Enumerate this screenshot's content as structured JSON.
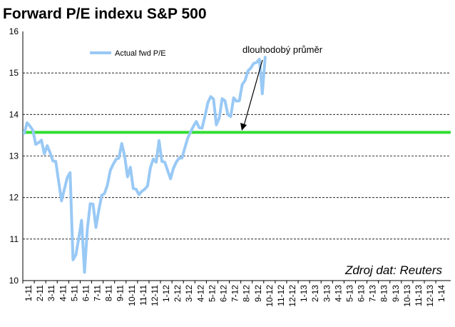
{
  "chart_data": {
    "type": "line",
    "title": "Forward P/E indexu S&P 500",
    "ylim": [
      10,
      16
    ],
    "yticks": [
      "10",
      "11",
      "12",
      "13",
      "14",
      "15",
      "16"
    ],
    "grid": "horizontal-dashed",
    "legend_position": "top-left",
    "x_tick_labels": [
      "1-11",
      "2-11",
      "3-11",
      "4-11",
      "5-11",
      "6-11",
      "7-11",
      "8-11",
      "9-11",
      "10-11",
      "11-11",
      "12-11",
      "1-12",
      "2-12",
      "3-12",
      "4-12",
      "5-12",
      "6-12",
      "7-12",
      "8-12",
      "9-12",
      "10-12",
      "11-12",
      "12-12",
      "1-13",
      "2-13",
      "3-13",
      "4-13",
      "5-13",
      "6-13",
      "7-13",
      "8-13",
      "9-13",
      "10-13",
      "11-13",
      "12-13",
      "1-14"
    ],
    "reference_line": {
      "value": 13.57,
      "label": "dlouhodobý  průměr",
      "color": "#33dd33"
    },
    "series": [
      {
        "name": "Actual fwd P/E",
        "color": "#99c9f5",
        "points_per_month": 4,
        "values": [
          13.55,
          13.8,
          13.72,
          13.62,
          13.28,
          13.32,
          13.38,
          13.05,
          13.25,
          13.08,
          12.88,
          12.87,
          12.38,
          11.92,
          12.2,
          12.48,
          12.6,
          10.5,
          10.62,
          11.02,
          11.45,
          10.2,
          11.25,
          11.85,
          11.84,
          11.28,
          11.7,
          12.05,
          12.1,
          12.3,
          12.65,
          12.8,
          12.92,
          12.95,
          13.3,
          13.0,
          12.5,
          12.73,
          12.22,
          12.2,
          12.07,
          12.15,
          12.2,
          12.28,
          12.72,
          12.93,
          12.85,
          13.37,
          12.87,
          12.85,
          12.65,
          12.45,
          12.7,
          12.85,
          12.95,
          12.95,
          13.2,
          13.43,
          13.58,
          13.72,
          13.83,
          13.68,
          13.67,
          13.96,
          14.28,
          14.43,
          14.37,
          13.75,
          13.92,
          14.38,
          14.33,
          14.0,
          13.95,
          14.4,
          14.32,
          14.33,
          14.72,
          14.82,
          15.05,
          15.12,
          15.23,
          15.25,
          15.33,
          14.5,
          15.38
        ]
      }
    ],
    "source_note": "Zdroj dat: Reuters"
  }
}
